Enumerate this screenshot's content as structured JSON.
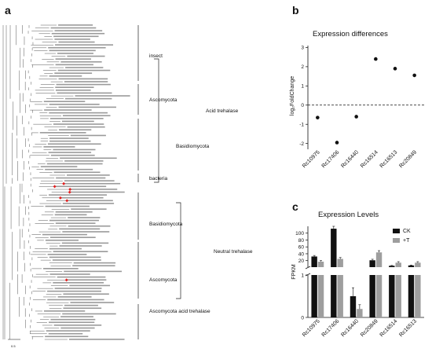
{
  "panels": {
    "a": "a",
    "b": "b",
    "c": "c"
  },
  "tree": {
    "scale_label": "0.5",
    "leaf_count": 112,
    "highlighted_leaf_count": 7,
    "highlight_color": "#e02020",
    "groups": [
      {
        "label": "insect"
      },
      {
        "label": "Ascomycota"
      },
      {
        "label": "Basidiomycota"
      },
      {
        "label": "bacteria"
      },
      {
        "label": "Acid trehalase"
      },
      {
        "label": "Basidiomycota"
      },
      {
        "label": "Ascomycota"
      },
      {
        "label": "Neutral trehalase"
      },
      {
        "label": "Ascomycota acid trehalase"
      }
    ]
  },
  "chart_data": [
    {
      "type": "scatter",
      "title": "Expression differences",
      "ylabel": "log₂FoldChange",
      "xlabel": "",
      "categories": [
        "Rc10975",
        "Rc17406",
        "Rc16440",
        "Rc16514",
        "Rc16513",
        "Rc20849"
      ],
      "values": [
        -0.65,
        -1.95,
        -0.6,
        2.4,
        1.9,
        1.55
      ],
      "ylim": [
        -2.3,
        3.1
      ],
      "yticks": [
        -2,
        -1,
        0,
        1,
        2,
        3
      ],
      "reference_line": 0,
      "color": "#111111"
    },
    {
      "type": "bar",
      "title": "Expression Levels",
      "ylabel": "FPKM",
      "xlabel": "",
      "categories": [
        "Rc10975",
        "Rc17406",
        "Rc16440",
        "Rc20849",
        "Rc16514",
        "Rc16513"
      ],
      "axis_break": {
        "lower": [
          0,
          1
        ],
        "upper": [
          1,
          120
        ]
      },
      "lower_ticks": [
        0,
        1
      ],
      "upper_ticks": [
        20,
        40,
        60,
        80,
        100
      ],
      "series": [
        {
          "name": "CK",
          "color": "#111111",
          "values": [
            32,
            113,
            0.5,
            21,
            5,
            6
          ],
          "errors": [
            3,
            8,
            0.2,
            3,
            1,
            1
          ]
        },
        {
          "name": "+T",
          "color": "#9e9e9e",
          "values": [
            17,
            25,
            0.2,
            44,
            14,
            14
          ],
          "errors": [
            3,
            4,
            0.1,
            5,
            3,
            3
          ]
        }
      ],
      "legend": "top-right"
    }
  ]
}
